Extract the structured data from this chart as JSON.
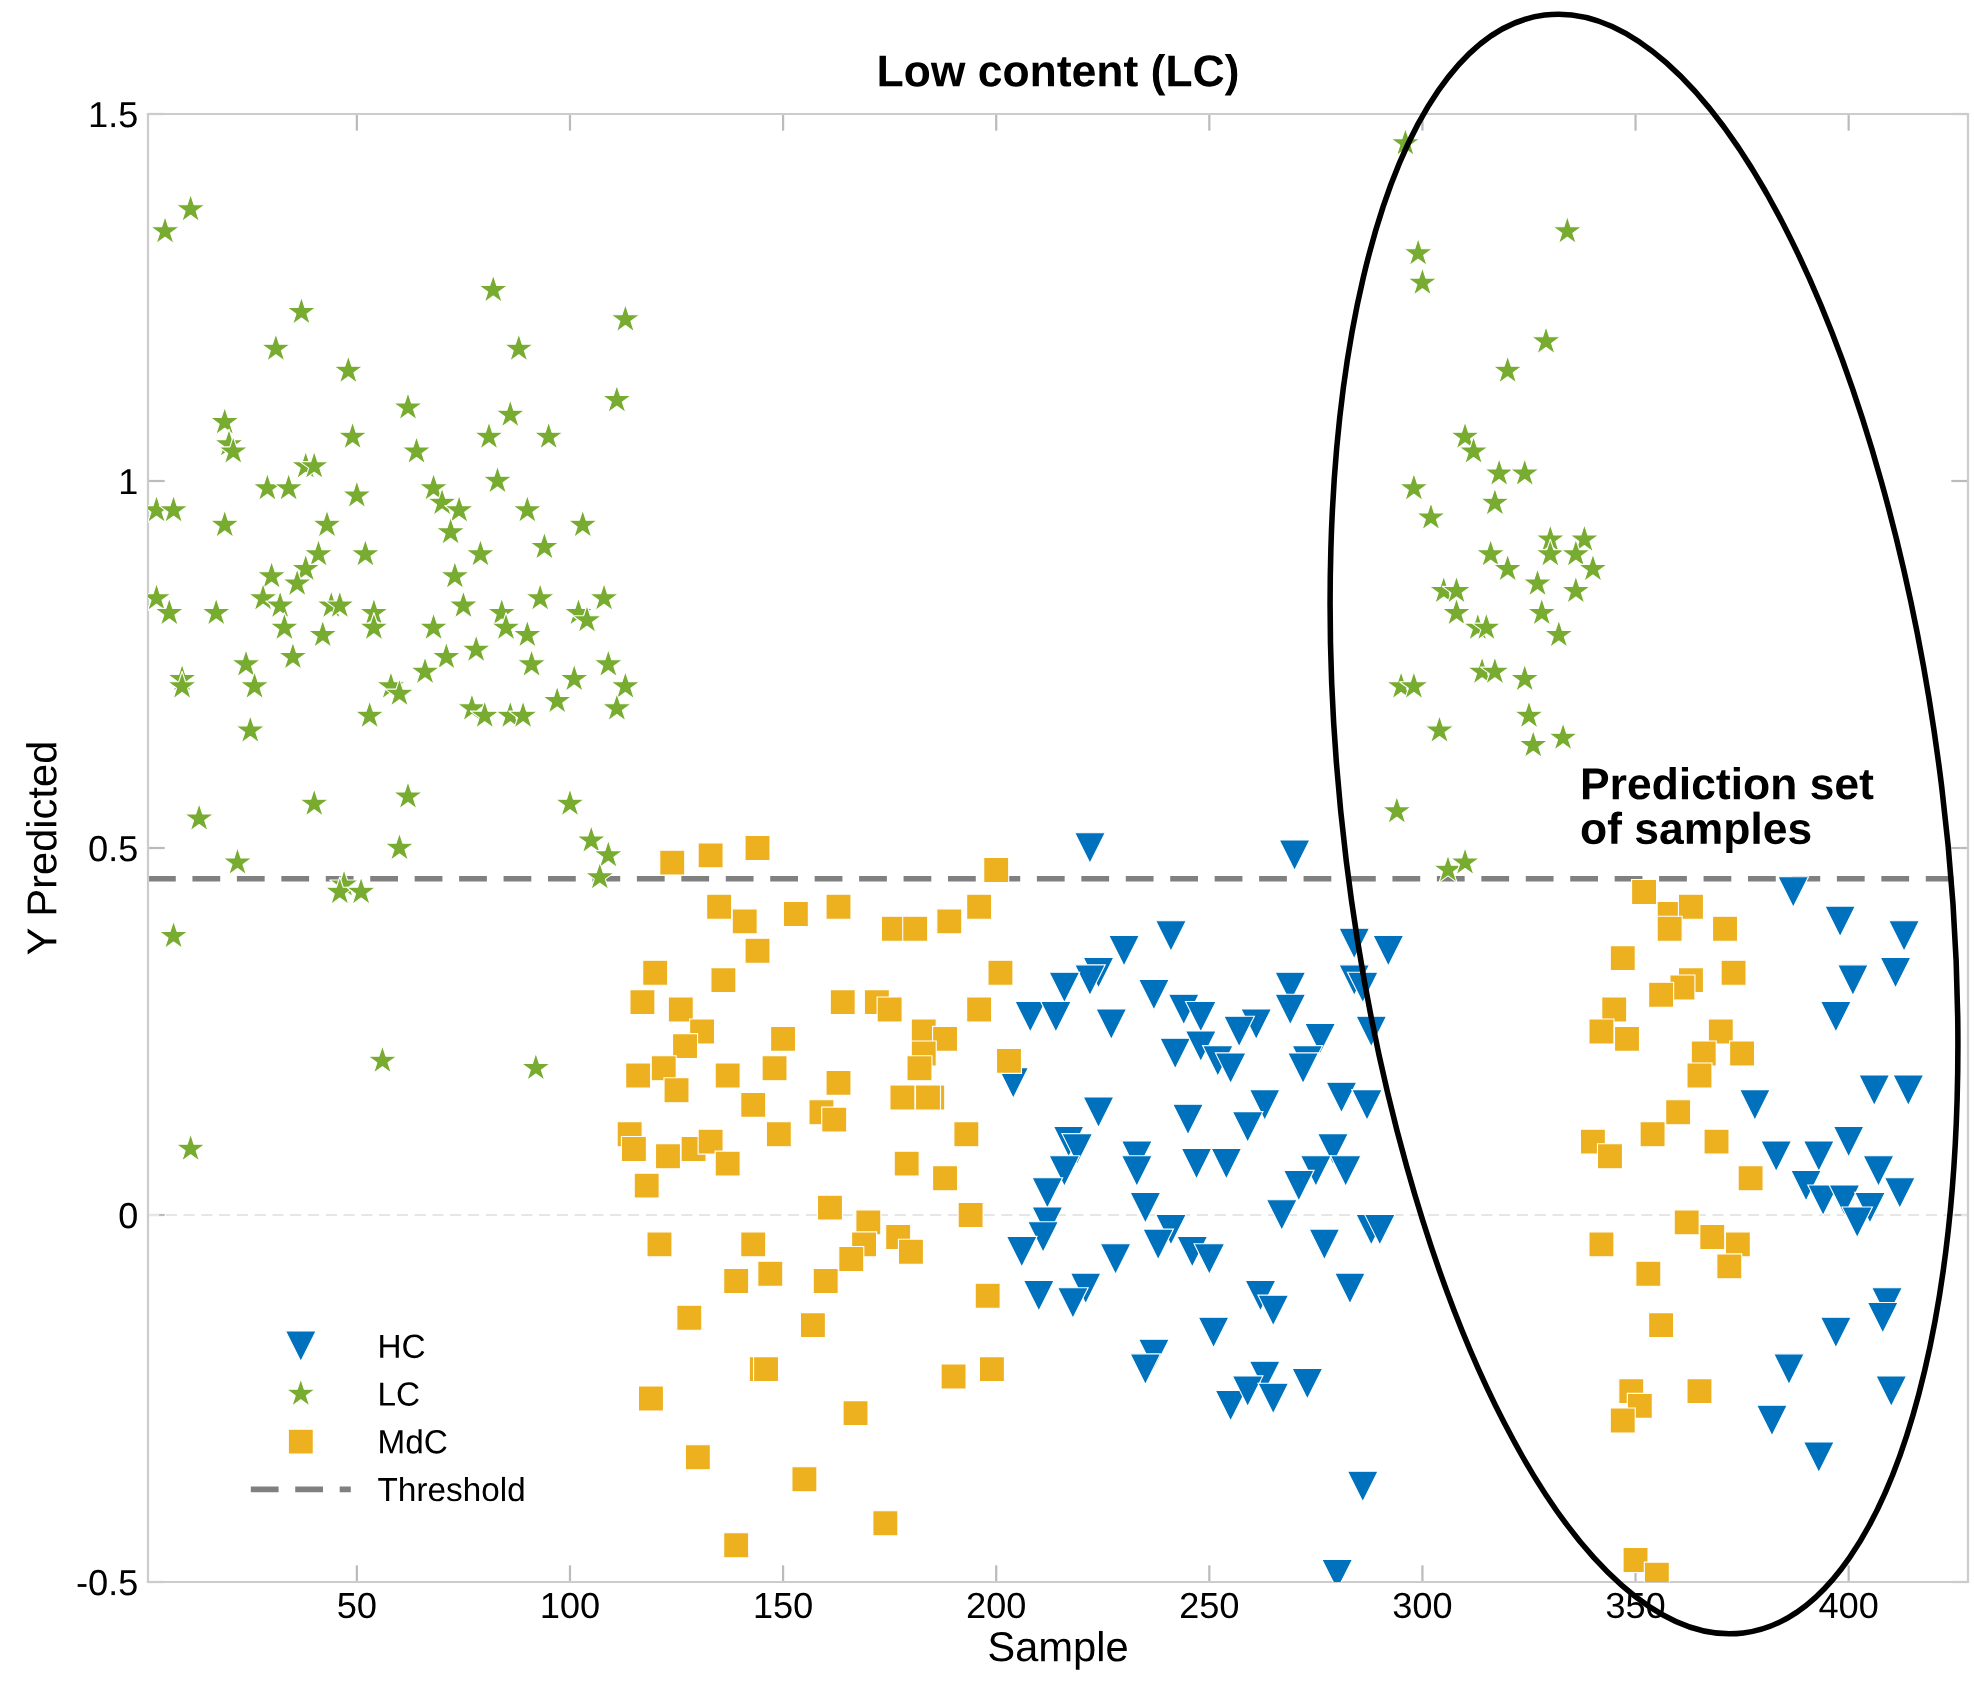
{
  "chart_data": {
    "type": "scatter",
    "title": "Low content (LC)",
    "xlabel": "Sample",
    "ylabel": "Y Predicted",
    "xlim": [
      1,
      428
    ],
    "xticks": [
      50,
      100,
      150,
      200,
      250,
      300,
      350,
      400
    ],
    "ylim": [
      -0.5,
      1.5
    ],
    "yticks": [
      -0.5,
      0,
      0.5,
      1,
      1.5
    ],
    "grid": false,
    "legend": "bottom left",
    "annotations": [
      "Prediction set\nof samples"
    ],
    "ref_lines": [
      {
        "axis": "y",
        "value": 0,
        "color": "#e6e6e6",
        "line_style": "dashed"
      },
      {
        "axis": "y",
        "value": 0.458,
        "label": "Threshold",
        "color": "#808080",
        "line_style": "dashed"
      }
    ],
    "series": [
      {
        "name": "HC",
        "color": "#0072bd",
        "marker": "triangle",
        "x": [
          222,
          270,
          241,
          230,
          224,
          222,
          216,
          237,
          208,
          214,
          227,
          244,
          248,
          269,
          269,
          261,
          257,
          242,
          248,
          252,
          255,
          276,
          273,
          272,
          284,
          284,
          286,
          288,
          204,
          224,
          245,
          263,
          259,
          281,
          287,
          217,
          219,
          233,
          233,
          216,
          247,
          254,
          279,
          275,
          282,
          271,
          212,
          267,
          235,
          212,
          241,
          238,
          211,
          206,
          246,
          250,
          288,
          277,
          228,
          210,
          221,
          218,
          283,
          262,
          265,
          251,
          273,
          237,
          235,
          263,
          255,
          259,
          265,
          286,
          280,
          387,
          398,
          413,
          411,
          401,
          397,
          292,
          378,
          406,
          414,
          383,
          393,
          400,
          407,
          390,
          412,
          394,
          399,
          405,
          402,
          290,
          409,
          408,
          397,
          386,
          410,
          382,
          393
        ],
        "values": [
          0.5,
          0.49,
          0.38,
          0.36,
          0.33,
          0.32,
          0.31,
          0.3,
          0.27,
          0.27,
          0.26,
          0.28,
          0.27,
          0.31,
          0.28,
          0.26,
          0.25,
          0.22,
          0.23,
          0.21,
          0.2,
          0.24,
          0.21,
          0.2,
          0.37,
          0.32,
          0.31,
          0.25,
          0.18,
          0.14,
          0.13,
          0.15,
          0.12,
          0.16,
          0.15,
          0.1,
          0.09,
          0.08,
          0.06,
          0.06,
          0.07,
          0.07,
          0.09,
          0.06,
          0.06,
          0.04,
          0.03,
          0.0,
          0.01,
          -0.01,
          -0.02,
          -0.04,
          -0.03,
          -0.05,
          -0.05,
          -0.06,
          -0.02,
          -0.04,
          -0.06,
          -0.11,
          -0.1,
          -0.12,
          -0.1,
          -0.11,
          -0.13,
          -0.16,
          -0.23,
          -0.19,
          -0.21,
          -0.22,
          -0.26,
          -0.24,
          -0.25,
          -0.37,
          -0.49,
          0.44,
          0.4,
          0.38,
          0.33,
          0.32,
          0.27,
          0.36,
          0.15,
          0.17,
          0.17,
          0.08,
          0.08,
          0.1,
          0.06,
          0.04,
          0.03,
          0.02,
          0.02,
          0.01,
          -0.01,
          -0.02,
          -0.12,
          -0.14,
          -0.16,
          -0.21,
          -0.24,
          -0.28,
          -0.33
        ]
      },
      {
        "name": "LC",
        "color": "#77ac30",
        "marker": "star",
        "x": [
          5,
          11,
          37,
          31,
          48,
          82,
          88,
          113,
          111,
          62,
          49,
          64,
          86,
          81,
          95,
          19,
          20,
          21,
          29,
          34,
          38,
          40,
          83,
          68,
          70,
          74,
          90,
          103,
          3,
          7,
          19,
          50,
          43,
          41,
          72,
          52,
          79,
          94,
          38,
          30,
          36,
          73,
          3,
          6,
          17,
          28,
          32,
          44,
          46,
          33,
          54,
          54,
          75,
          84,
          85,
          93,
          102,
          104,
          108,
          68,
          42,
          90,
          78,
          35,
          24,
          26,
          9,
          9,
          71,
          66,
          58,
          60,
          91,
          101,
          109,
          113,
          97,
          111,
          77,
          80,
          86,
          89,
          53,
          25,
          40,
          62,
          100,
          13,
          105,
          109,
          22,
          60,
          107,
          47,
          46,
          51,
          7,
          56,
          92,
          11,
          296,
          334,
          299,
          300,
          329,
          320,
          310,
          312,
          298,
          318,
          324,
          317,
          302,
          330,
          338,
          330,
          336,
          340,
          316,
          320,
          327,
          305,
          308,
          308,
          336,
          328,
          313,
          315,
          332,
          314,
          317,
          324,
          295,
          298,
          304,
          325,
          333,
          326,
          294,
          306,
          310
        ],
        "values": [
          1.34,
          1.37,
          1.23,
          1.18,
          1.15,
          1.26,
          1.18,
          1.22,
          1.11,
          1.1,
          1.06,
          1.04,
          1.09,
          1.06,
          1.06,
          1.08,
          1.05,
          1.04,
          0.99,
          0.99,
          1.02,
          1.02,
          1.0,
          0.99,
          0.97,
          0.96,
          0.96,
          0.94,
          0.96,
          0.96,
          0.94,
          0.98,
          0.94,
          0.9,
          0.93,
          0.9,
          0.9,
          0.91,
          0.88,
          0.87,
          0.86,
          0.87,
          0.84,
          0.82,
          0.82,
          0.84,
          0.83,
          0.83,
          0.83,
          0.8,
          0.82,
          0.8,
          0.83,
          0.82,
          0.8,
          0.84,
          0.82,
          0.81,
          0.84,
          0.8,
          0.79,
          0.79,
          0.77,
          0.76,
          0.75,
          0.72,
          0.73,
          0.72,
          0.76,
          0.74,
          0.72,
          0.71,
          0.75,
          0.73,
          0.75,
          0.72,
          0.7,
          0.69,
          0.69,
          0.68,
          0.68,
          0.68,
          0.68,
          0.66,
          0.56,
          0.57,
          0.56,
          0.54,
          0.51,
          0.49,
          0.48,
          0.5,
          0.46,
          0.45,
          0.44,
          0.44,
          0.38,
          0.21,
          0.2,
          0.09,
          1.46,
          1.34,
          1.31,
          1.27,
          1.19,
          1.15,
          1.06,
          1.04,
          0.99,
          1.01,
          1.01,
          0.97,
          0.95,
          0.92,
          0.92,
          0.9,
          0.9,
          0.88,
          0.9,
          0.88,
          0.86,
          0.85,
          0.85,
          0.82,
          0.85,
          0.82,
          0.8,
          0.8,
          0.79,
          0.74,
          0.74,
          0.73,
          0.72,
          0.72,
          0.66,
          0.68,
          0.65,
          0.64,
          0.55,
          0.47,
          0.48
        ]
      },
      {
        "name": "MdC",
        "color": "#edb120",
        "marker": "square",
        "x": [
          124,
          133,
          144,
          135,
          141,
          144,
          120,
          136,
          117,
          126,
          131,
          127,
          116,
          122,
          125,
          137,
          143,
          114,
          115,
          123,
          129,
          133,
          137,
          118,
          121,
          143,
          139,
          128,
          145,
          119,
          130,
          139,
          200,
          153,
          163,
          176,
          181,
          189,
          196,
          201,
          164,
          172,
          175,
          196,
          150,
          183,
          188,
          148,
          183,
          182,
          203,
          163,
          178,
          185,
          184,
          159,
          162,
          149,
          193,
          179,
          188,
          161,
          194,
          170,
          169,
          177,
          180,
          166,
          147,
          160,
          198,
          157,
          146,
          190,
          199,
          167,
          155,
          174,
          352,
          358,
          363,
          358,
          371,
          347,
          373,
          363,
          361,
          356,
          345,
          342,
          348,
          370,
          375,
          366,
          365,
          360,
          354,
          340,
          344,
          369,
          377,
          362,
          342,
          368,
          374,
          372,
          353,
          356,
          365,
          349,
          351,
          347,
          350,
          355
        ],
        "values": [
          0.48,
          0.49,
          0.5,
          0.42,
          0.4,
          0.36,
          0.33,
          0.32,
          0.29,
          0.28,
          0.25,
          0.23,
          0.19,
          0.2,
          0.17,
          0.19,
          0.15,
          0.11,
          0.09,
          0.08,
          0.09,
          0.1,
          0.07,
          0.04,
          -0.04,
          -0.04,
          -0.09,
          -0.14,
          -0.21,
          -0.25,
          -0.33,
          -0.45,
          0.47,
          0.41,
          0.42,
          0.39,
          0.39,
          0.4,
          0.42,
          0.33,
          0.29,
          0.29,
          0.28,
          0.28,
          0.24,
          0.25,
          0.24,
          0.2,
          0.22,
          0.2,
          0.21,
          0.18,
          0.16,
          0.16,
          0.16,
          0.14,
          0.13,
          0.11,
          0.11,
          0.07,
          0.05,
          0.01,
          0.0,
          -0.01,
          -0.04,
          -0.03,
          -0.05,
          -0.06,
          -0.08,
          -0.09,
          -0.11,
          -0.15,
          -0.21,
          -0.22,
          -0.21,
          -0.27,
          -0.36,
          -0.42,
          0.44,
          0.41,
          0.42,
          0.39,
          0.39,
          0.35,
          0.33,
          0.32,
          0.31,
          0.3,
          0.28,
          0.25,
          0.24,
          0.25,
          0.22,
          0.22,
          0.19,
          0.14,
          0.11,
          0.1,
          0.08,
          0.1,
          0.05,
          -0.01,
          -0.04,
          -0.03,
          -0.04,
          -0.07,
          -0.08,
          -0.15,
          -0.24,
          -0.24,
          -0.26,
          -0.28,
          -0.47,
          -0.49
        ]
      }
    ]
  }
}
